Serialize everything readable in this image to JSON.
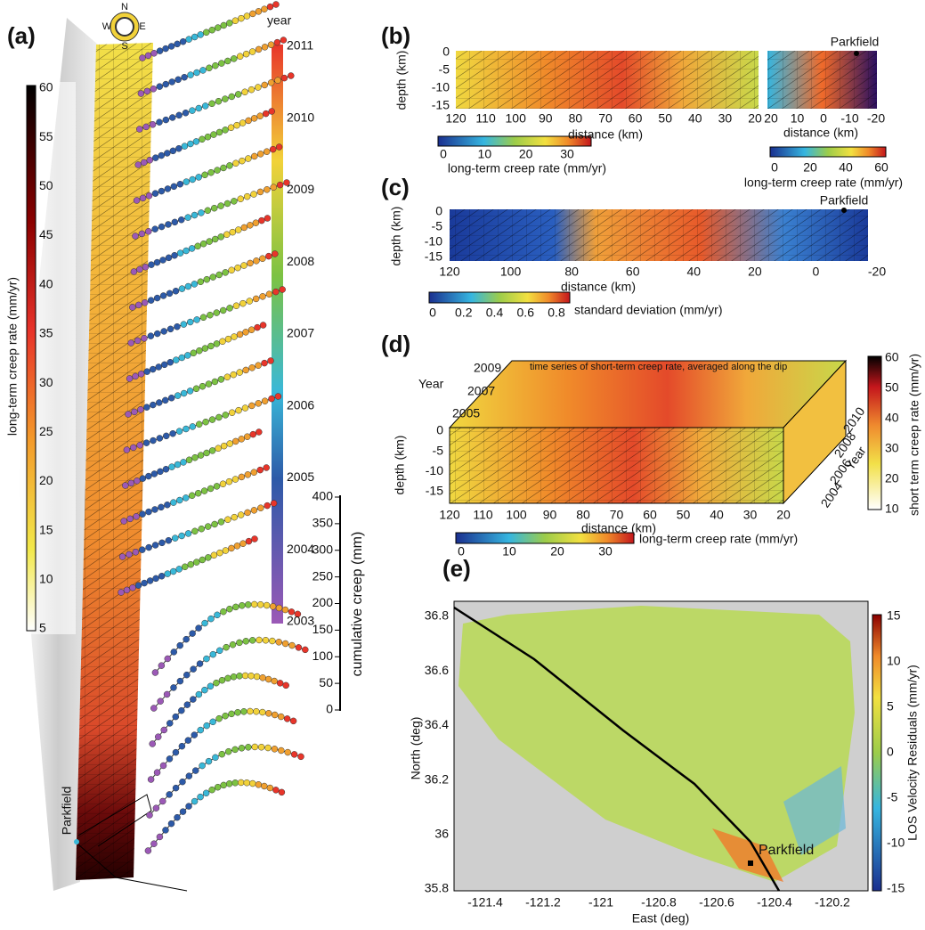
{
  "a": {
    "label": "(a)",
    "compass": [
      "N",
      "E",
      "S",
      "W"
    ],
    "rate_colorbar": {
      "title": "long-term creep rate (mm/yr)",
      "ticks": [
        60,
        55,
        50,
        45,
        40,
        35,
        30,
        25,
        20,
        15,
        10,
        5
      ]
    },
    "year_colorbar": {
      "title": "year",
      "ticks": [
        2011,
        2010,
        2009,
        2008,
        2007,
        2006,
        2005,
        2004,
        2003
      ]
    },
    "creep_axis": {
      "title": "cumulative creep (mm)",
      "ticks": [
        400,
        350,
        300,
        250,
        200,
        150,
        100,
        50,
        0
      ]
    },
    "site": "Parkfield"
  },
  "b": {
    "label": "(b)",
    "ylabel": "depth (km)",
    "yticks": [
      0,
      -5,
      -10,
      -15
    ],
    "left_xticks": [
      120,
      110,
      100,
      90,
      80,
      70,
      60,
      50,
      40,
      30,
      20
    ],
    "xlabel_left": "distance (km)",
    "right_xticks": [
      20,
      10,
      0,
      -10,
      -20
    ],
    "xlabel_right": "distance (km)",
    "site": "Parkfield",
    "colorbar_left": {
      "title": "long-term creep rate (mm/yr)",
      "ticks": [
        0,
        10,
        20,
        30
      ]
    },
    "colorbar_right": {
      "title": "long-term creep rate (mm/yr)",
      "ticks": [
        0,
        20,
        40,
        60
      ]
    }
  },
  "c": {
    "label": "(c)",
    "ylabel": "depth (km)",
    "yticks": [
      0,
      -5,
      -10,
      -15
    ],
    "xticks": [
      120,
      100,
      80,
      60,
      40,
      20,
      0,
      -20
    ],
    "xlabel": "distance (km)",
    "site": "Parkfield",
    "colorbar": {
      "title": "standard deviation (mm/yr)",
      "ticks": [
        0,
        0.2,
        0.4,
        0.6,
        0.8
      ]
    }
  },
  "d": {
    "label": "(d)",
    "annotation": "time series of short-term creep rate, averaged along the dip",
    "year_label": "Year",
    "year_ticks": [
      2009,
      2007,
      2005
    ],
    "ylabel": "depth (km)",
    "yticks": [
      0,
      -5,
      -10,
      -15
    ],
    "xticks": [
      120,
      110,
      100,
      90,
      80,
      70,
      60,
      50,
      40,
      30,
      20
    ],
    "xlabel": "distance (km)",
    "side_year_label": "Year",
    "side_year_ticks": [
      2010,
      2008,
      2006,
      2004
    ],
    "short_colorbar": {
      "title": "short term creep rate (mm/yr)",
      "ticks": [
        60,
        50,
        40,
        30,
        20,
        10
      ]
    },
    "long_colorbar": {
      "title": "long-term creep rate (mm/yr)",
      "ticks": [
        0,
        10,
        20,
        30
      ]
    }
  },
  "e": {
    "label": "(e)",
    "ylabel": "North (deg)",
    "yticks": [
      36.8,
      36.6,
      36.4,
      36.2,
      36,
      35.8
    ],
    "xlabel": "East (deg)",
    "xticks": [
      -121.4,
      -121.2,
      -121,
      -120.8,
      -120.6,
      -120.4,
      -120.2
    ],
    "site": "Parkfield",
    "colorbar": {
      "title": "LOS Velocity Residuals (mm/yr)",
      "ticks": [
        15,
        10,
        5,
        0,
        -5,
        -10,
        -15
      ]
    }
  }
}
